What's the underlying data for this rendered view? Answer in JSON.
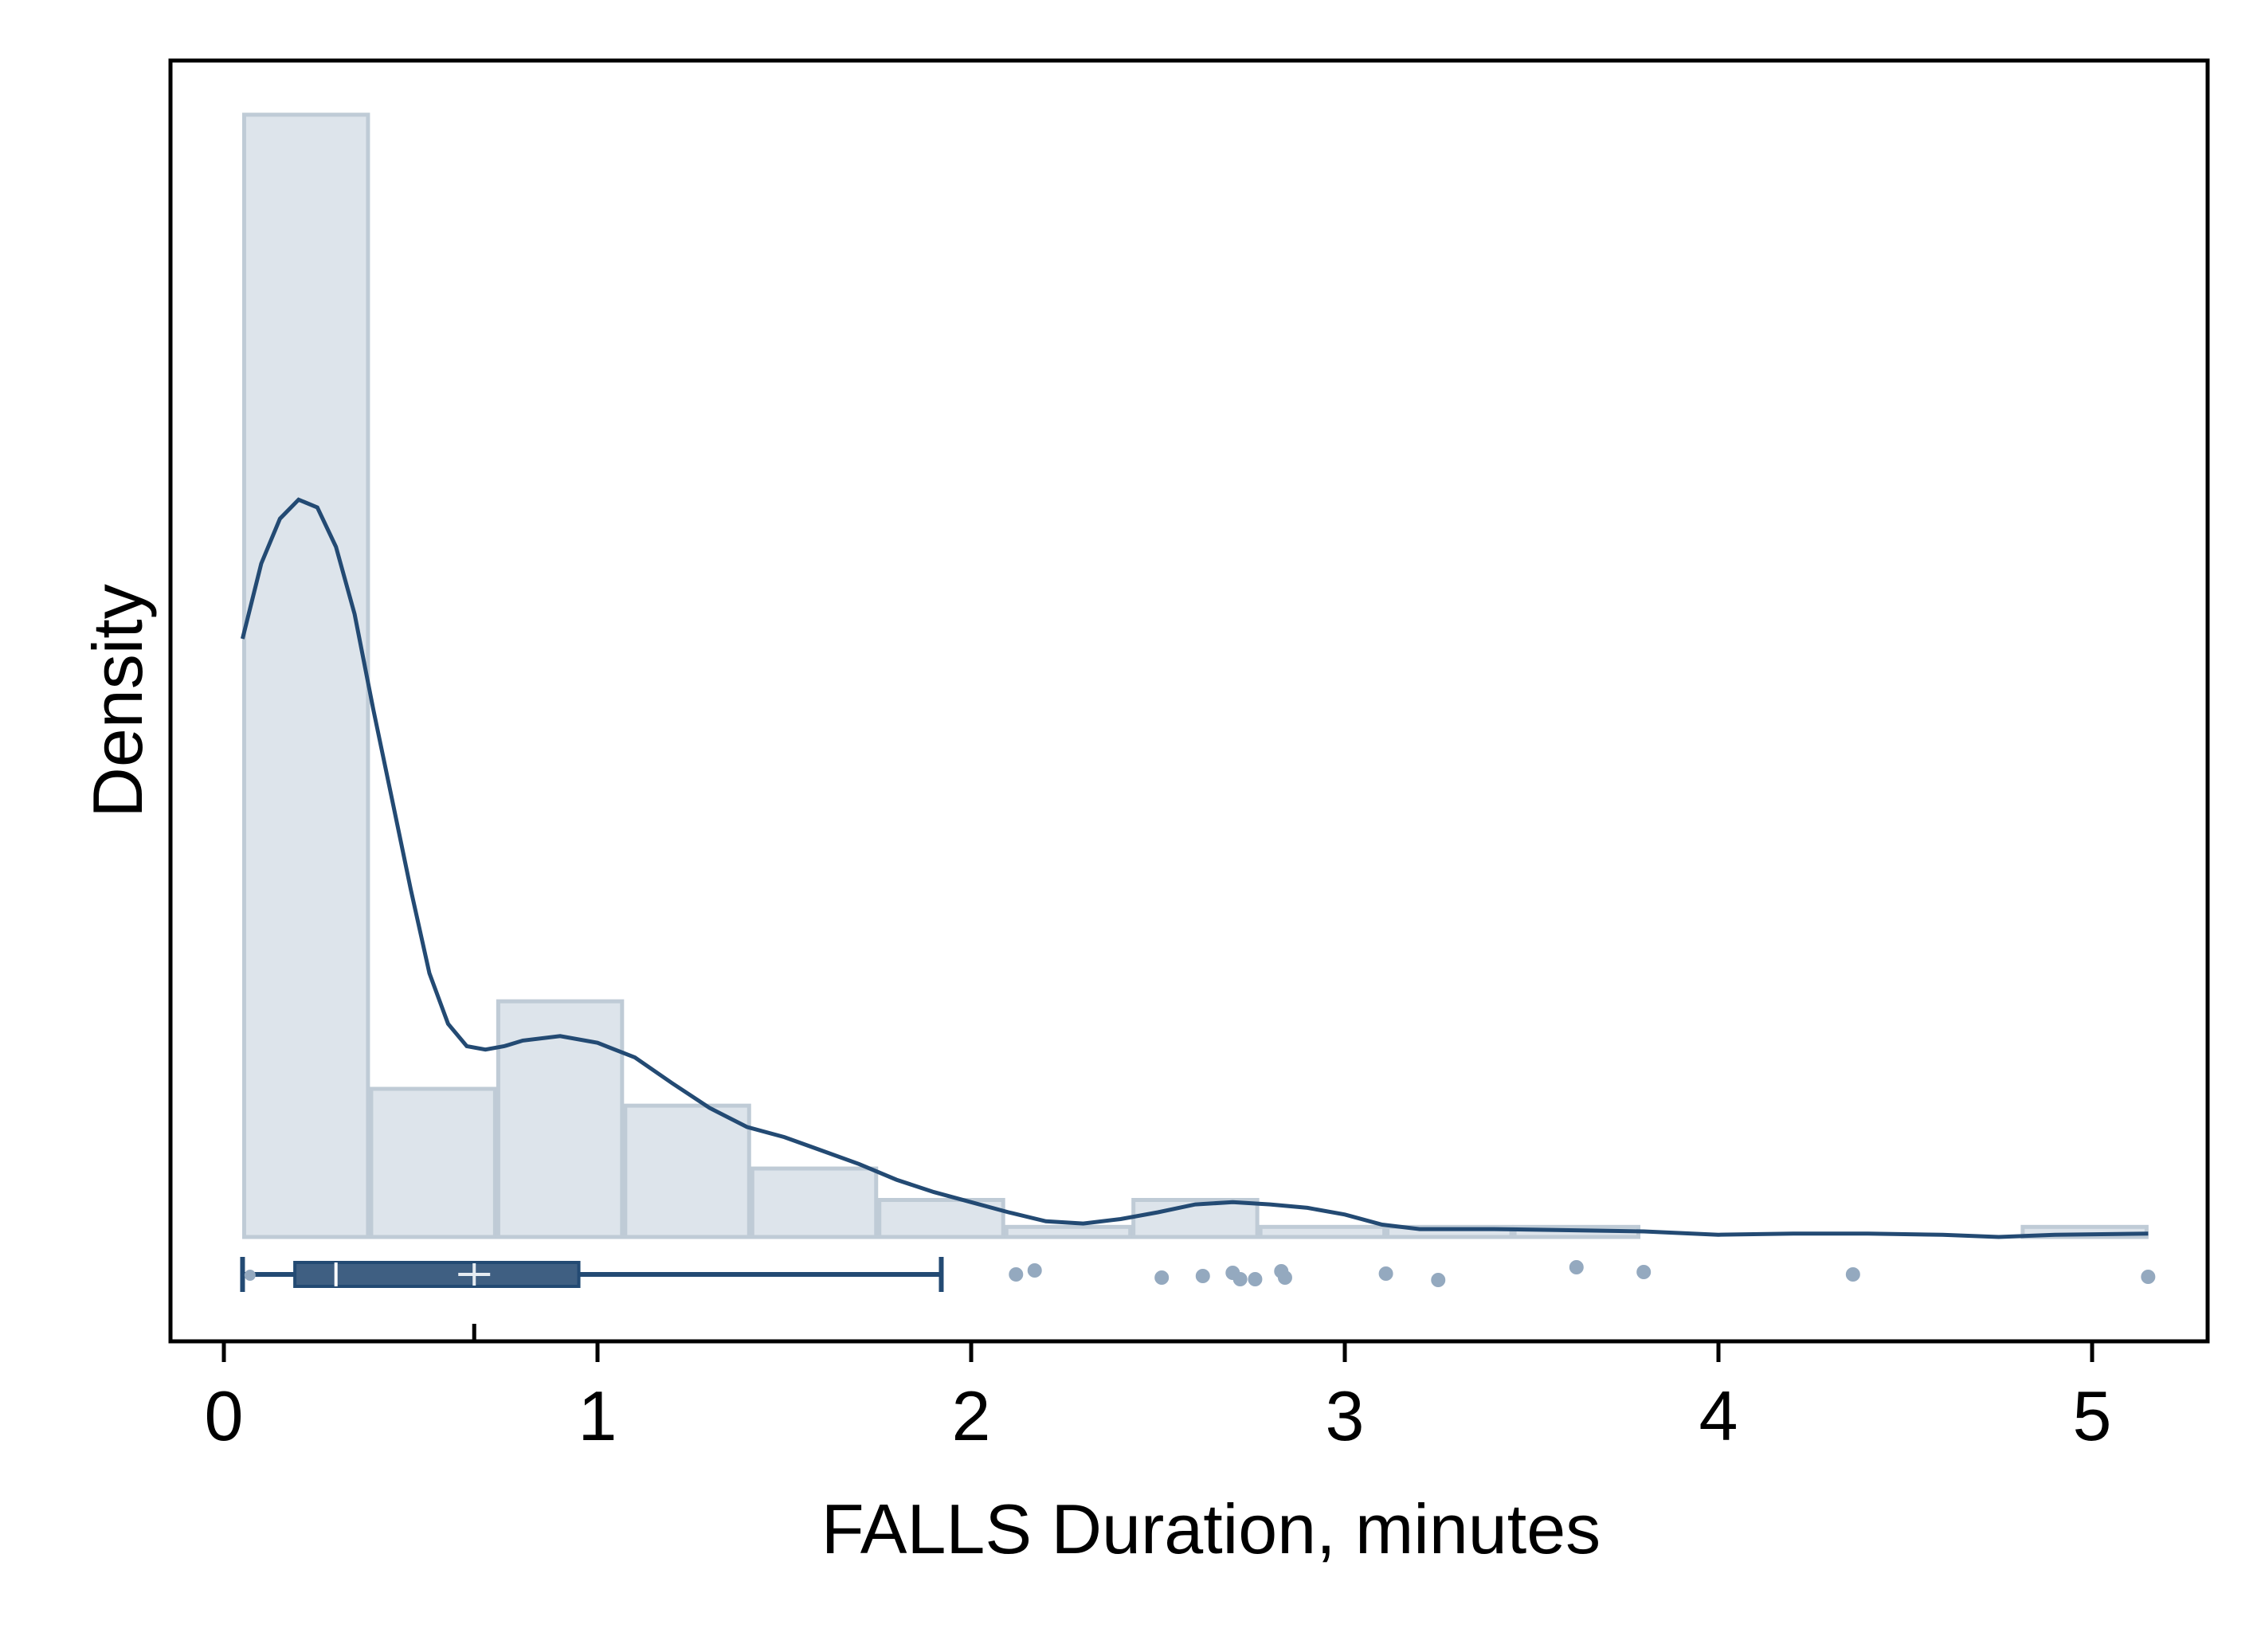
{
  "colors": {
    "bar_fill": "#dde4eb",
    "bar_stroke": "#bfcbd6",
    "line": "#234a73",
    "box_fill": "#3f5f82",
    "outlier": "#94a9bf"
  },
  "chart_data": {
    "type": "histogram-with-density-and-boxplot",
    "xlabel": "FALLS Duration, minutes",
    "ylabel": "Density",
    "xlim": [
      -0.07,
      5.38
    ],
    "x_ticks": [
      "0",
      "1",
      "2",
      "3",
      "4",
      "5"
    ],
    "y_ticks_shown": false,
    "grid": false,
    "histogram": {
      "bin_edges": [
        0.05,
        0.39,
        0.73,
        1.07,
        1.41,
        1.75,
        2.09,
        2.43,
        2.77,
        3.11,
        3.45,
        3.79,
        4.13,
        4.47,
        4.81,
        5.15
      ],
      "heights": [
        1.0,
        0.132,
        0.21,
        0.117,
        0.061,
        0.033,
        0.009,
        0.033,
        0.009,
        0.009,
        0.009,
        0.0,
        0.0,
        0.0,
        0.009
      ]
    },
    "density_curve": {
      "x": [
        0.05,
        0.1,
        0.15,
        0.2,
        0.25,
        0.3,
        0.35,
        0.4,
        0.45,
        0.5,
        0.55,
        0.6,
        0.65,
        0.7,
        0.75,
        0.8,
        0.9,
        1.0,
        1.1,
        1.2,
        1.3,
        1.4,
        1.5,
        1.6,
        1.7,
        1.8,
        1.9,
        2.0,
        2.1,
        2.2,
        2.3,
        2.4,
        2.5,
        2.6,
        2.7,
        2.8,
        2.9,
        3.0,
        3.1,
        3.2,
        3.3,
        3.4,
        3.6,
        3.8,
        4.0,
        4.2,
        4.4,
        4.6,
        4.75,
        4.9,
        5.15
      ],
      "y": [
        0.533,
        0.6,
        0.64,
        0.657,
        0.65,
        0.615,
        0.555,
        0.47,
        0.39,
        0.31,
        0.235,
        0.19,
        0.17,
        0.167,
        0.17,
        0.175,
        0.179,
        0.173,
        0.16,
        0.137,
        0.115,
        0.098,
        0.089,
        0.077,
        0.065,
        0.051,
        0.04,
        0.031,
        0.022,
        0.014,
        0.012,
        0.016,
        0.022,
        0.029,
        0.031,
        0.029,
        0.026,
        0.02,
        0.011,
        0.007,
        0.007,
        0.007,
        0.006,
        0.005,
        0.002,
        0.003,
        0.003,
        0.002,
        0.0,
        0.002,
        0.003
      ]
    },
    "boxplot": {
      "whisker_low": 0.05,
      "q1": 0.19,
      "median": 0.3,
      "mean": 0.67,
      "q3": 0.95,
      "whisker_high": 1.92,
      "outliers": [
        2.12,
        2.17,
        2.51,
        2.62,
        2.7,
        2.72,
        2.76,
        2.83,
        2.84,
        3.11,
        3.25,
        3.62,
        3.8,
        4.36,
        5.15
      ]
    }
  }
}
